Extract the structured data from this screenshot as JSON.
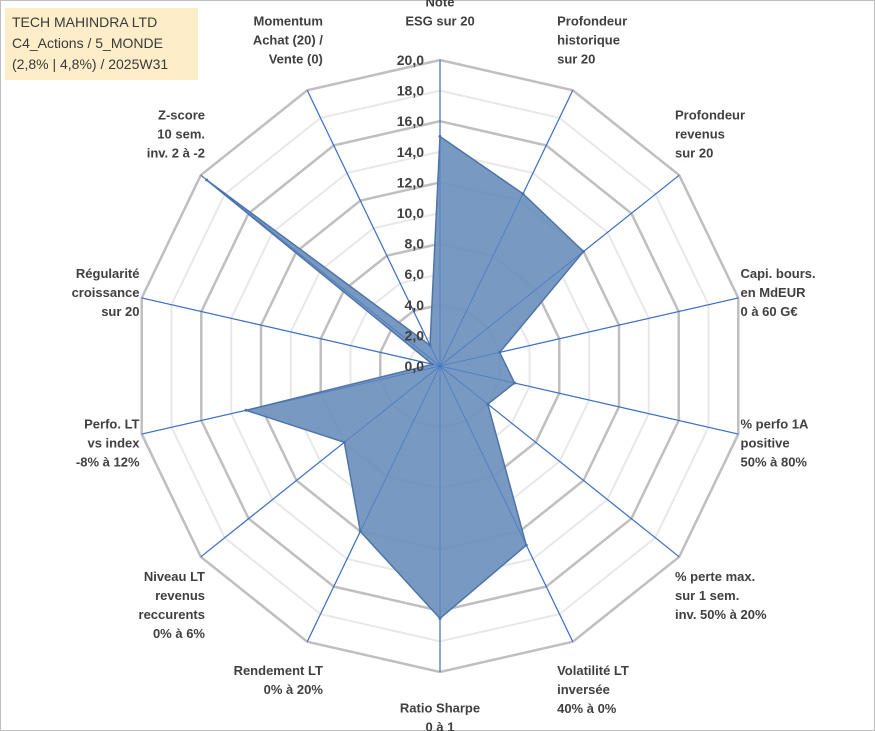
{
  "info_box": {
    "line1": "TECH MAHINDRA LTD",
    "line2": "C4_Actions / 5_MONDE",
    "line3": "(2,8% | 4,8%) / 2025W31"
  },
  "colors": {
    "fill": "#7093bf",
    "stroke": "#4f75a8",
    "spoke": "#3d6fc4",
    "grid_outer": "#bfbfbf",
    "grid_inner": "#e8e8e8",
    "info_bg": "#fdeec9"
  },
  "chart_data": {
    "type": "radar",
    "title": "",
    "rmin": 0,
    "rmax": 20,
    "ticks": [
      "0,0",
      "2,0",
      "4,0",
      "6,0",
      "8,0",
      "10,0",
      "12,0",
      "14,0",
      "16,0",
      "18,0",
      "20,0"
    ],
    "axes": [
      [
        "Note",
        "ESG sur 20"
      ],
      [
        "Profondeur",
        "historique",
        "sur 20"
      ],
      [
        "Profondeur",
        "revenus",
        "sur 20"
      ],
      [
        "Capi. bours.",
        "en MdEUR",
        "0 à 60 G€"
      ],
      [
        "% perfo 1A",
        "positive",
        "50% à 80%"
      ],
      [
        "% perte max.",
        "sur 1 sem.",
        "inv. 50% à 20%"
      ],
      [
        "Volatilité LT",
        "inversée",
        "40% à 0%"
      ],
      [
        "Ratio Sharpe",
        "0 à 1"
      ],
      [
        "Rendement LT",
        "0% à 20%"
      ],
      [
        "Niveau LT",
        "revenus",
        "reccurents",
        "0% à 6%"
      ],
      [
        "Perfo. LT",
        "vs index",
        "-8% à 12%"
      ],
      [
        "Régularité",
        "croissance",
        "sur 20"
      ],
      [
        "Z-score",
        "10 sem.",
        "inv. 2 à -2"
      ],
      [
        "Momentum",
        "Achat (20) /",
        "Vente (0)"
      ]
    ],
    "series": [
      {
        "values": [
          15.0,
          12.5,
          12.0,
          4.0,
          5.0,
          4.0,
          13.0,
          16.5,
          12.0,
          8.0,
          13.0,
          0.5,
          19.5,
          1.5
        ]
      }
    ]
  }
}
